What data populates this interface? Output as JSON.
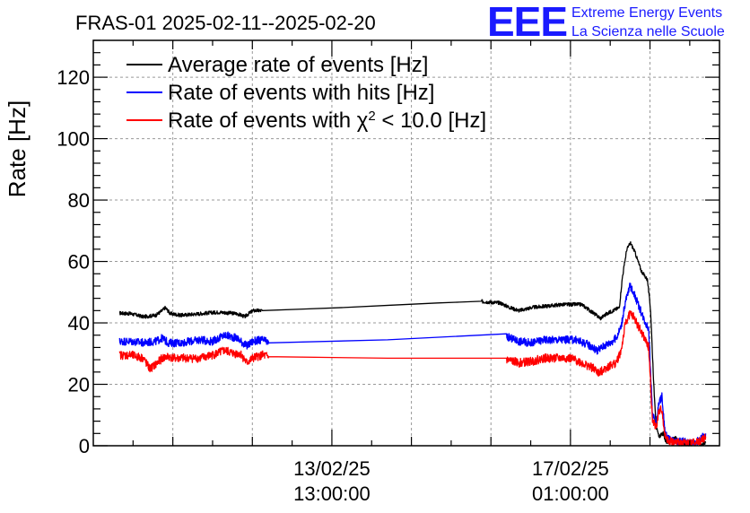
{
  "chart_data": {
    "type": "line",
    "title": "FRAS-01 2025-02-11--2025-02-20",
    "ylabel": "Rate [Hz]",
    "xlabel": "",
    "ylim": [
      0,
      132
    ],
    "yticks": [
      0,
      20,
      40,
      60,
      80,
      100,
      120
    ],
    "xlim": [
      0,
      100
    ],
    "xticks": [
      {
        "x": 38.1,
        "label_date": "13/02/25",
        "label_time": "13:00:00"
      },
      {
        "x": 76.2,
        "label_date": "17/02/25",
        "label_time": "01:00:00"
      }
    ],
    "grid": true,
    "legend_position": "top-left",
    "series": [
      {
        "name": "Average rate of events [Hz]",
        "color": "#000000",
        "noise": 0.6,
        "points": [
          [
            4.2,
            43.2
          ],
          [
            6,
            43
          ],
          [
            8,
            42
          ],
          [
            10,
            42.5
          ],
          [
            11,
            44
          ],
          [
            11.5,
            45
          ],
          [
            12.3,
            43
          ],
          [
            14,
            42.5
          ],
          [
            17,
            43
          ],
          [
            20,
            43.5
          ],
          [
            23,
            43
          ],
          [
            24.2,
            42
          ],
          [
            24.8,
            43
          ],
          [
            25.5,
            44
          ],
          [
            27,
            44
          ],
          [
            40,
            45
          ],
          [
            55,
            46.5
          ],
          [
            62,
            47
          ],
          [
            65,
            46.5
          ],
          [
            66.5,
            45
          ],
          [
            68,
            44
          ],
          [
            70,
            45
          ],
          [
            75,
            46
          ],
          [
            78,
            46
          ],
          [
            80,
            43
          ],
          [
            81,
            41.5
          ],
          [
            82,
            43
          ],
          [
            83,
            44
          ],
          [
            84,
            45
          ],
          [
            84.5,
            55
          ],
          [
            85.2,
            64
          ],
          [
            85.8,
            66
          ],
          [
            86.5,
            63
          ],
          [
            87.5,
            57
          ],
          [
            88.5,
            54
          ],
          [
            89,
            44
          ],
          [
            89.5,
            20
          ],
          [
            89.9,
            6
          ],
          [
            90.3,
            3
          ],
          [
            91,
            4
          ],
          [
            91.5,
            1
          ],
          [
            92,
            1.5
          ],
          [
            93,
            2.5
          ],
          [
            93.5,
            1
          ],
          [
            95,
            0.5
          ],
          [
            96,
            1.5
          ],
          [
            97,
            0.5
          ],
          [
            97.8,
            1
          ]
        ]
      },
      {
        "name": "Rate of events with hits [Hz]",
        "color": "#0000ff",
        "noise": 1.3,
        "points": [
          [
            4.2,
            34
          ],
          [
            6,
            34
          ],
          [
            8,
            33.5
          ],
          [
            10,
            34
          ],
          [
            11,
            35
          ],
          [
            12,
            33.5
          ],
          [
            14,
            33.5
          ],
          [
            17,
            34.5
          ],
          [
            19,
            34
          ],
          [
            21,
            36
          ],
          [
            23,
            35
          ],
          [
            24.5,
            32.5
          ],
          [
            25.5,
            34
          ],
          [
            27,
            34.5
          ],
          [
            28,
            33.5
          ],
          [
            66,
            35.5
          ],
          [
            68,
            34
          ],
          [
            70,
            33.5
          ],
          [
            72,
            34.5
          ],
          [
            74,
            34.5
          ],
          [
            77,
            34.5
          ],
          [
            79,
            33
          ],
          [
            80.5,
            31
          ],
          [
            81.5,
            32.5
          ],
          [
            82.5,
            33.5
          ],
          [
            83.5,
            35
          ],
          [
            84.3,
            39
          ],
          [
            85,
            47
          ],
          [
            85.7,
            52
          ],
          [
            86.3,
            50
          ],
          [
            87,
            46
          ],
          [
            88,
            41
          ],
          [
            88.7,
            38
          ],
          [
            89.3,
            10
          ],
          [
            89.9,
            7
          ],
          [
            90.3,
            14
          ],
          [
            90.8,
            16
          ],
          [
            91.3,
            4
          ],
          [
            92,
            2
          ],
          [
            93,
            1
          ],
          [
            94,
            1.5
          ],
          [
            95,
            1
          ],
          [
            96,
            1
          ],
          [
            97,
            2
          ],
          [
            97.8,
            4
          ]
        ]
      },
      {
        "name": "Rate of events with χ2 < 10.0 [Hz]",
        "color": "#ff0000",
        "noise": 1.4,
        "points": [
          [
            4.2,
            29.5
          ],
          [
            6,
            29.5
          ],
          [
            8,
            28.5
          ],
          [
            9,
            25
          ],
          [
            10,
            26.5
          ],
          [
            11,
            28.5
          ],
          [
            12,
            29
          ],
          [
            13,
            28.5
          ],
          [
            15,
            28.5
          ],
          [
            17,
            28.5
          ],
          [
            19,
            29.5
          ],
          [
            21,
            31
          ],
          [
            22.5,
            30
          ],
          [
            23.5,
            30
          ],
          [
            24.5,
            27
          ],
          [
            25.5,
            28.5
          ],
          [
            27,
            29.5
          ],
          [
            28,
            29
          ],
          [
            66,
            28
          ],
          [
            68,
            27
          ],
          [
            70,
            27.5
          ],
          [
            72,
            28.5
          ],
          [
            74,
            28.5
          ],
          [
            76,
            28.5
          ],
          [
            77.5,
            27.5
          ],
          [
            79,
            26
          ],
          [
            80,
            25
          ],
          [
            80.8,
            23.5
          ],
          [
            81.5,
            25
          ],
          [
            82.5,
            26
          ],
          [
            83.5,
            27
          ],
          [
            84.3,
            31
          ],
          [
            85,
            40
          ],
          [
            85.7,
            43
          ],
          [
            86.3,
            42
          ],
          [
            87,
            39
          ],
          [
            88,
            35
          ],
          [
            88.7,
            32
          ],
          [
            89.3,
            8
          ],
          [
            89.9,
            6
          ],
          [
            90.3,
            11
          ],
          [
            90.8,
            12
          ],
          [
            91.3,
            3
          ],
          [
            92,
            1.5
          ],
          [
            93,
            1
          ],
          [
            94,
            1
          ],
          [
            95,
            0.8
          ],
          [
            96,
            1
          ],
          [
            97,
            1.5
          ],
          [
            97.8,
            3
          ]
        ]
      }
    ]
  },
  "logo": {
    "mark": "EEE",
    "line1": "Extreme Energy Events",
    "line2": "La Scienza nelle Scuole"
  }
}
